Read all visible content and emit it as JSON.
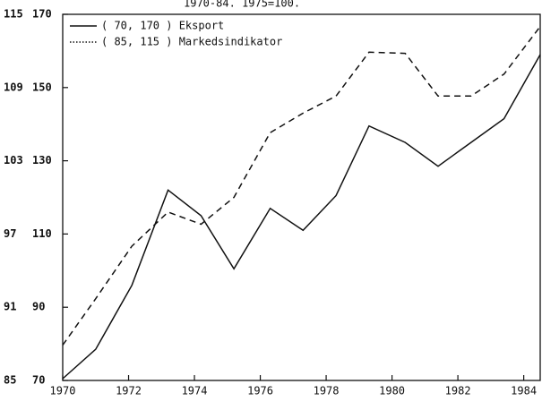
{
  "chart_data": {
    "type": "line",
    "subtitle": "1970-84. 1975=100.",
    "x": [
      1970,
      1971.0,
      1972.1,
      1973.2,
      1974.2,
      1975.2,
      1976.3,
      1977.3,
      1978.3,
      1979.3,
      1980.4,
      1981.4,
      1982.4,
      1983.4,
      1984.5
    ],
    "xlim": [
      1970,
      1984.5
    ],
    "xticks": [
      1970,
      1972,
      1974,
      1976,
      1978,
      1980,
      1982,
      1984
    ],
    "ylim": [
      85,
      115
    ],
    "yticks": [
      85,
      91,
      97,
      103,
      109,
      115
    ],
    "y2lim": [
      70,
      170
    ],
    "y2ticks": [
      70,
      90,
      110,
      130,
      150,
      170
    ],
    "legend": "upper left",
    "series": [
      {
        "name": "( 70, 170 ) Eksport",
        "color": "#111111",
        "style": "solid",
        "axis": "y2",
        "values": [
          70.5,
          78.5,
          96,
          122,
          115,
          100.5,
          117,
          111,
          120.5,
          139.5,
          135,
          128.5,
          135,
          141.5,
          159
        ]
      },
      {
        "name": "( 85, 115 ) Markedsindikator",
        "color": "#111111",
        "style": "dashed",
        "values": [
          87.9,
          91.7,
          96,
          98.8,
          97.8,
          100,
          105.3,
          106.9,
          108.3,
          111.9,
          111.8,
          108.3,
          108.3,
          110.1,
          114
        ]
      }
    ]
  }
}
